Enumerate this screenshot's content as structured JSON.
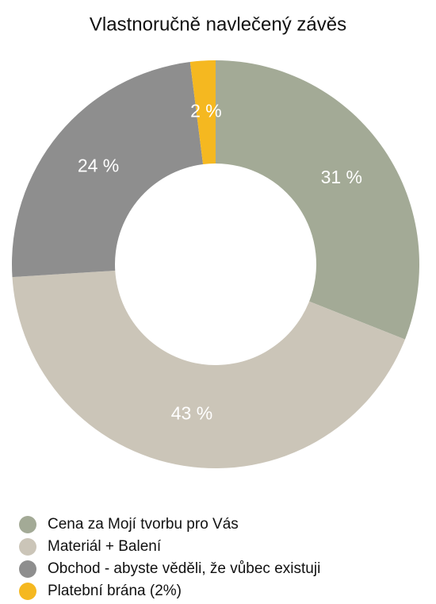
{
  "chart_data": {
    "type": "pie",
    "donut": true,
    "title": "Vlastnoručně navlečený závěs",
    "categories": [
      "Cena za Mojí tvorbu pro Vás",
      "Materiál + Balení",
      "Obchod - abyste věděli, že vůbec existuji",
      "Platební brána (2%)"
    ],
    "values": [
      31,
      43,
      24,
      2
    ],
    "value_labels": [
      "31 %",
      "43 %",
      "24 %",
      "2 %"
    ],
    "colors": [
      "#a3aa96",
      "#cbc5b8",
      "#8e8e8e",
      "#f5b820"
    ],
    "legend": "bottom-left"
  }
}
